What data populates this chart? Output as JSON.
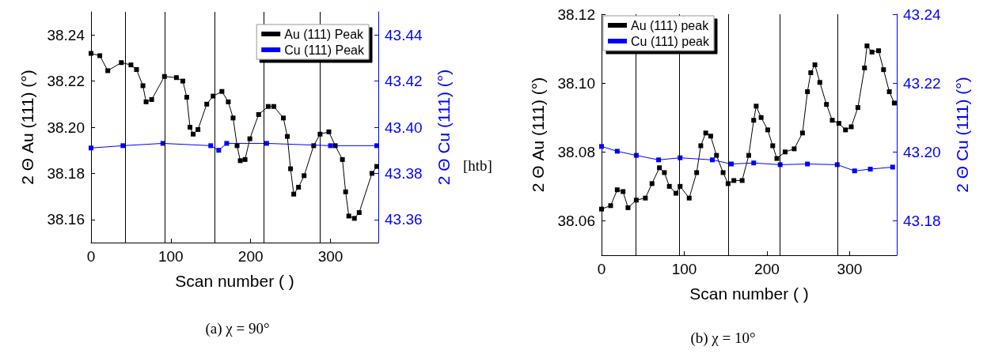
{
  "chart_data": [
    {
      "type": "line",
      "subtitle": "(a) χ = 90°",
      "xlabel": "Scan number ( )",
      "ylabel": "2 Θ Au (111) (°)",
      "y2label": "2 Θ Cu (111) (°)",
      "xlim": [
        0,
        360
      ],
      "xticks": [
        0,
        100,
        200,
        300
      ],
      "ylim": [
        38.15,
        38.25
      ],
      "yticks": [
        38.16,
        38.18,
        {
          "value": 38.2,
          "label": "38.20"
        },
        38.22,
        38.24
      ],
      "y2lim": [
        43.35,
        43.45
      ],
      "y2ticks": [
        43.36,
        43.38,
        {
          "value": 43.4,
          "label": "43.40"
        },
        43.42,
        43.44
      ],
      "series": [
        {
          "name": "Au (111) Peak",
          "color": "#000000",
          "x": [
            0,
            11,
            21,
            38,
            50,
            57,
            65,
            69,
            76,
            92,
            107,
            115,
            120,
            124,
            128,
            134,
            145,
            153,
            164,
            172,
            178,
            183,
            187,
            193,
            199,
            210,
            222,
            229,
            241,
            246,
            250,
            254,
            260,
            267,
            279,
            287,
            298,
            306,
            315,
            319,
            323,
            330,
            336,
            352,
            358
          ],
          "values": [
            38.232,
            38.231,
            38.2245,
            38.228,
            38.227,
            38.225,
            38.218,
            38.211,
            38.212,
            38.222,
            38.2215,
            38.22,
            38.213,
            38.2,
            38.197,
            38.199,
            38.21,
            38.2135,
            38.2155,
            38.211,
            38.204,
            38.192,
            38.1855,
            38.186,
            38.195,
            38.2055,
            38.209,
            38.209,
            38.204,
            38.196,
            38.182,
            38.171,
            38.174,
            38.179,
            38.192,
            38.197,
            38.198,
            38.192,
            38.186,
            38.172,
            38.1615,
            38.1605,
            38.163,
            38.18,
            38.183
          ]
        },
        {
          "name": "Cu (111) Peak",
          "color": "#0000ff",
          "axis": "y2",
          "x": [
            0,
            40,
            90,
            150,
            160,
            170,
            220,
            300,
            358
          ],
          "values": [
            43.391,
            43.392,
            43.393,
            43.392,
            43.39,
            43.393,
            43.393,
            43.392,
            43.392
          ]
        }
      ],
      "ref_lines": [
        {
          "axis": "x",
          "value": 43,
          "color": "#000000"
        },
        {
          "axis": "x",
          "value": 92,
          "color": "#000000"
        },
        {
          "axis": "x",
          "value": 155,
          "color": "#000000"
        },
        {
          "axis": "x",
          "value": 216,
          "color": "#000000"
        },
        {
          "axis": "x",
          "value": 287,
          "color": "#000000"
        }
      ],
      "marker": "square",
      "grid": false,
      "legend": "top right"
    },
    {
      "type": "line",
      "subtitle": "(b) χ = 10°",
      "xlabel": "Scan number ( )",
      "ylabel": "2 Θ Au (111) (°)",
      "y2label": "2 Θ Cu (111) (°)",
      "annotations": [
        "[htb]"
      ],
      "xlim": [
        0,
        357
      ],
      "xticks": [
        0,
        100,
        200,
        300
      ],
      "ylim": [
        38.05,
        38.12
      ],
      "yticks": [
        38.06,
        38.08,
        {
          "value": 38.1,
          "label": "38.10"
        },
        38.12
      ],
      "y2lim": [
        43.17,
        43.24
      ],
      "y2ticks": [
        43.18,
        {
          "value": 43.2,
          "label": "43.20"
        },
        43.22,
        43.24
      ],
      "series": [
        {
          "name": "Au (111) peak",
          "color": "#000000",
          "x": [
            0,
            11,
            19,
            26,
            32,
            42,
            53,
            61,
            70,
            76,
            82,
            90,
            95,
            106,
            115,
            120,
            126,
            132,
            139,
            147,
            153,
            160,
            170,
            178,
            184,
            187,
            193,
            201,
            207,
            212,
            222,
            233,
            243,
            249,
            253,
            258,
            264,
            272,
            279,
            287,
            295,
            302,
            310,
            318,
            321,
            327,
            335,
            341,
            348,
            354
          ],
          "values": [
            38.0634,
            38.0644,
            38.069,
            38.0685,
            38.0638,
            38.066,
            38.0666,
            38.0708,
            38.0754,
            38.074,
            38.07,
            38.068,
            38.07,
            38.0666,
            38.074,
            38.0818,
            38.0855,
            38.0846,
            38.079,
            38.074,
            38.0708,
            38.0717,
            38.0717,
            38.079,
            38.0892,
            38.0933,
            38.09,
            38.0864,
            38.0818,
            38.0781,
            38.08,
            38.0809,
            38.0855,
            38.0975,
            38.103,
            38.1053,
            38.1002,
            38.0938,
            38.0892,
            38.0883,
            38.0864,
            38.0873,
            38.0929,
            38.1044,
            38.1108,
            38.109,
            38.1094,
            38.1039,
            38.0975,
            38.0942
          ]
        },
        {
          "name": "Cu (111) peak",
          "color": "#0000ff",
          "axis": "y2",
          "x": [
            0,
            19,
            42,
            69,
            95,
            134,
            157,
            184,
            216,
            249,
            285,
            306,
            325,
            352
          ],
          "values": [
            43.2016,
            43.2002,
            43.199,
            43.1977,
            43.1983,
            43.1977,
            43.1965,
            43.1968,
            43.1963,
            43.1965,
            43.1963,
            43.1945,
            43.195,
            43.1956
          ]
        }
      ],
      "ref_lines": [
        {
          "axis": "x",
          "value": 41,
          "color": "#000000"
        },
        {
          "axis": "x",
          "value": 94,
          "color": "#000000"
        },
        {
          "axis": "x",
          "value": 153,
          "color": "#000000"
        },
        {
          "axis": "x",
          "value": 216,
          "color": "#000000"
        },
        {
          "axis": "x",
          "value": 285,
          "color": "#000000"
        }
      ],
      "marker": "square",
      "grid": false,
      "legend": "top left"
    }
  ]
}
